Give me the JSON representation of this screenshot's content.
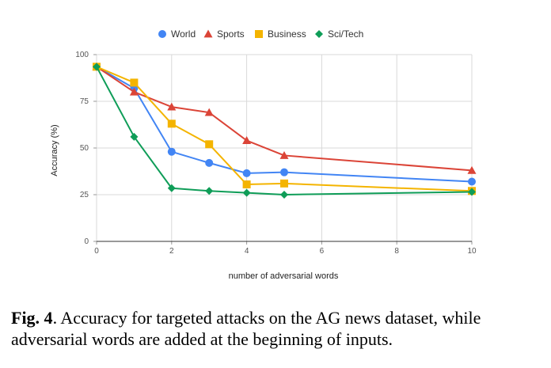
{
  "chart_data": {
    "type": "line",
    "xlabel": "number of adversarial words",
    "ylabel": "Accuracy (%)",
    "xlim": [
      0,
      10
    ],
    "ylim": [
      0,
      100
    ],
    "x_ticks": [
      0,
      2,
      4,
      6,
      8,
      10
    ],
    "y_ticks": [
      0,
      25,
      50,
      75,
      100
    ],
    "grid": true,
    "legend_position": "top-center",
    "series": [
      {
        "name": "World",
        "color": "#4285F4",
        "marker": "circle",
        "x": [
          0,
          1,
          2,
          3,
          4,
          5,
          10
        ],
        "y": [
          93.5,
          82,
          48,
          42,
          36.5,
          37,
          32
        ]
      },
      {
        "name": "Sports",
        "color": "#DB4437",
        "marker": "triangle",
        "x": [
          0,
          1,
          2,
          3,
          4,
          5,
          10
        ],
        "y": [
          93.5,
          80,
          72,
          69,
          54,
          46,
          38
        ]
      },
      {
        "name": "Business",
        "color": "#F4B400",
        "marker": "square",
        "x": [
          0,
          1,
          2,
          3,
          4,
          5,
          10
        ],
        "y": [
          93.5,
          85,
          63,
          52,
          30.5,
          31,
          27
        ]
      },
      {
        "name": "Sci/Tech",
        "color": "#0F9D58",
        "marker": "diamond",
        "x": [
          0,
          1,
          2,
          3,
          4,
          5,
          10
        ],
        "y": [
          93.5,
          56,
          28.5,
          27,
          26,
          25,
          26.5
        ]
      }
    ]
  },
  "caption": {
    "label": "Fig. 4",
    "text": ". Accuracy for targeted attacks on the AG news dataset, while adversarial words are added at the beginning of inputs."
  }
}
